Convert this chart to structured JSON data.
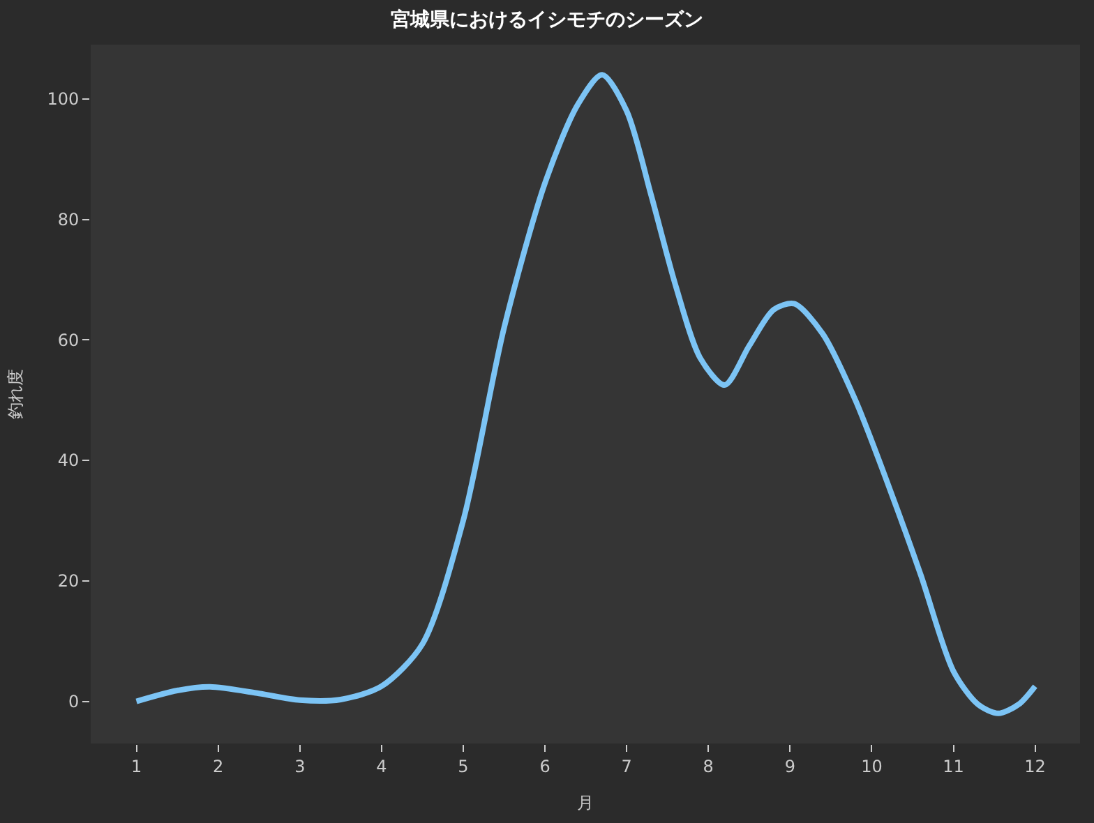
{
  "chart_data": {
    "type": "line",
    "title": "宮城県におけるイシモチのシーズン",
    "xlabel": "月",
    "ylabel": "釣れ度",
    "xlim": [
      0.44,
      12.55
    ],
    "xticks": [
      1,
      2,
      3,
      4,
      5,
      6,
      7,
      8,
      9,
      10,
      11,
      12
    ],
    "ylim": [
      -7,
      109
    ],
    "yticks": [
      0,
      20,
      40,
      60,
      80,
      100
    ],
    "grid": false,
    "legend": false,
    "marker": "none",
    "line_style": "solid",
    "series": [
      {
        "color": "#7cc4f5",
        "x": [
          1.0,
          1.5,
          1.9,
          2.5,
          3.0,
          3.5,
          4.0,
          4.5,
          5.0,
          5.5,
          6.0,
          6.4,
          6.7,
          7.0,
          7.3,
          7.6,
          7.9,
          8.2,
          8.5,
          8.8,
          9.05,
          9.4,
          9.8,
          10.2,
          10.6,
          11.0,
          11.3,
          11.55,
          11.8,
          12.0
        ],
        "values": [
          0,
          1.8,
          2.4,
          1.3,
          0.2,
          0.3,
          2.5,
          9.5,
          30,
          62,
          86,
          99,
          104,
          98,
          84,
          69,
          57,
          52.5,
          59,
          65,
          66,
          61,
          50,
          36,
          21,
          5,
          -0.5,
          -2,
          -0.5,
          2.5
        ]
      }
    ]
  }
}
